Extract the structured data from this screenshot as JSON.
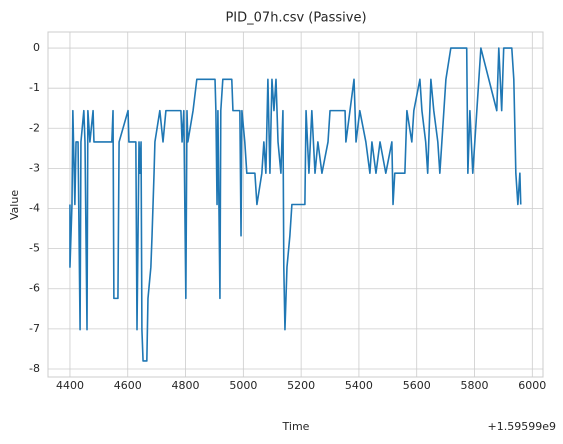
{
  "chart_data": {
    "type": "line",
    "title": "PID_07h.csv (Passive)",
    "xlabel": "Time",
    "ylabel": "Value",
    "x_offset_label": "+1.59599e9",
    "x": [
      4400,
      4400,
      4407,
      4410,
      4417,
      4421,
      4428,
      4435,
      4438,
      4448,
      4452,
      4459,
      4462,
      4469,
      4480,
      4483,
      4545,
      4549,
      4552,
      4566,
      4570,
      4601,
      4604,
      4628,
      4632,
      4639,
      4642,
      4646,
      4649,
      4653,
      4666,
      4670,
      4680,
      4684,
      4691,
      4694,
      4711,
      4722,
      4732,
      4784,
      4788,
      4794,
      4801,
      4805,
      4808,
      4826,
      4839,
      4902,
      4905,
      4909,
      4912,
      4919,
      4922,
      4929,
      4960,
      4964,
      4988,
      4992,
      4995,
      5005,
      5012,
      5040,
      5047,
      5064,
      5071,
      5078,
      5085,
      5092,
      5099,
      5106,
      5113,
      5120,
      5130,
      5137,
      5140,
      5144,
      5151,
      5161,
      5168,
      5213,
      5217,
      5227,
      5237,
      5248,
      5258,
      5272,
      5293,
      5300,
      5352,
      5355,
      5383,
      5390,
      5403,
      5424,
      5438,
      5445,
      5459,
      5473,
      5493,
      5514,
      5518,
      5524,
      5559,
      5566,
      5583,
      5590,
      5611,
      5618,
      5631,
      5638,
      5649,
      5659,
      5673,
      5680,
      5687,
      5701,
      5718,
      5773,
      5777,
      5784,
      5794,
      5822,
      5877,
      5884,
      5894,
      5901,
      5929,
      5936,
      5943,
      5950,
      5957,
      5960
    ],
    "series": [
      {
        "name": "Value",
        "color": "#1f77b4",
        "values": [
          -3.9,
          -5.46,
          -3.9,
          -1.56,
          -3.9,
          -2.34,
          -2.34,
          -7.02,
          -2.34,
          -1.56,
          -2.34,
          -7.02,
          -1.56,
          -2.34,
          -1.56,
          -2.34,
          -2.34,
          -1.56,
          -6.24,
          -6.24,
          -2.34,
          -1.56,
          -2.34,
          -2.34,
          -7.02,
          -2.34,
          -3.12,
          -2.34,
          -7.02,
          -7.8,
          -7.8,
          -6.24,
          -5.46,
          -4.68,
          -3.12,
          -2.34,
          -1.56,
          -2.34,
          -1.56,
          -1.56,
          -2.34,
          -1.56,
          -6.24,
          -1.56,
          -2.34,
          -1.56,
          -0.78,
          -0.78,
          -1.56,
          -3.9,
          -1.56,
          -6.24,
          -1.56,
          -0.78,
          -0.78,
          -1.56,
          -1.56,
          -4.68,
          -1.56,
          -2.34,
          -3.12,
          -3.12,
          -3.9,
          -3.12,
          -2.34,
          -3.12,
          -0.78,
          -3.12,
          -0.78,
          -1.56,
          -0.78,
          -2.34,
          -3.12,
          -1.56,
          -5.46,
          -7.02,
          -5.46,
          -4.68,
          -3.9,
          -3.9,
          -1.56,
          -3.12,
          -1.56,
          -3.12,
          -2.34,
          -3.12,
          -2.34,
          -1.56,
          -1.56,
          -2.34,
          -0.78,
          -2.34,
          -1.56,
          -2.34,
          -3.12,
          -2.34,
          -3.12,
          -2.34,
          -3.12,
          -2.34,
          -3.9,
          -3.12,
          -3.12,
          -1.56,
          -2.34,
          -1.56,
          -0.78,
          -1.56,
          -2.34,
          -3.12,
          -0.78,
          -1.56,
          -2.34,
          -3.12,
          -2.34,
          -0.78,
          0,
          0,
          -3.12,
          -1.56,
          -3.12,
          0,
          -1.56,
          0,
          -1.56,
          0,
          0,
          -0.78,
          -3.12,
          -3.9,
          -3.12,
          -3.9
        ]
      }
    ],
    "xlim": [
      4324,
      6037
    ],
    "ylim": [
      -8.2,
      0.4
    ],
    "xticks": [
      4400,
      4600,
      4800,
      5000,
      5200,
      5400,
      5600,
      5800,
      6000
    ],
    "yticks": [
      0,
      -1,
      -2,
      -3,
      -4,
      -5,
      -6,
      -7,
      -8
    ],
    "grid": true
  }
}
